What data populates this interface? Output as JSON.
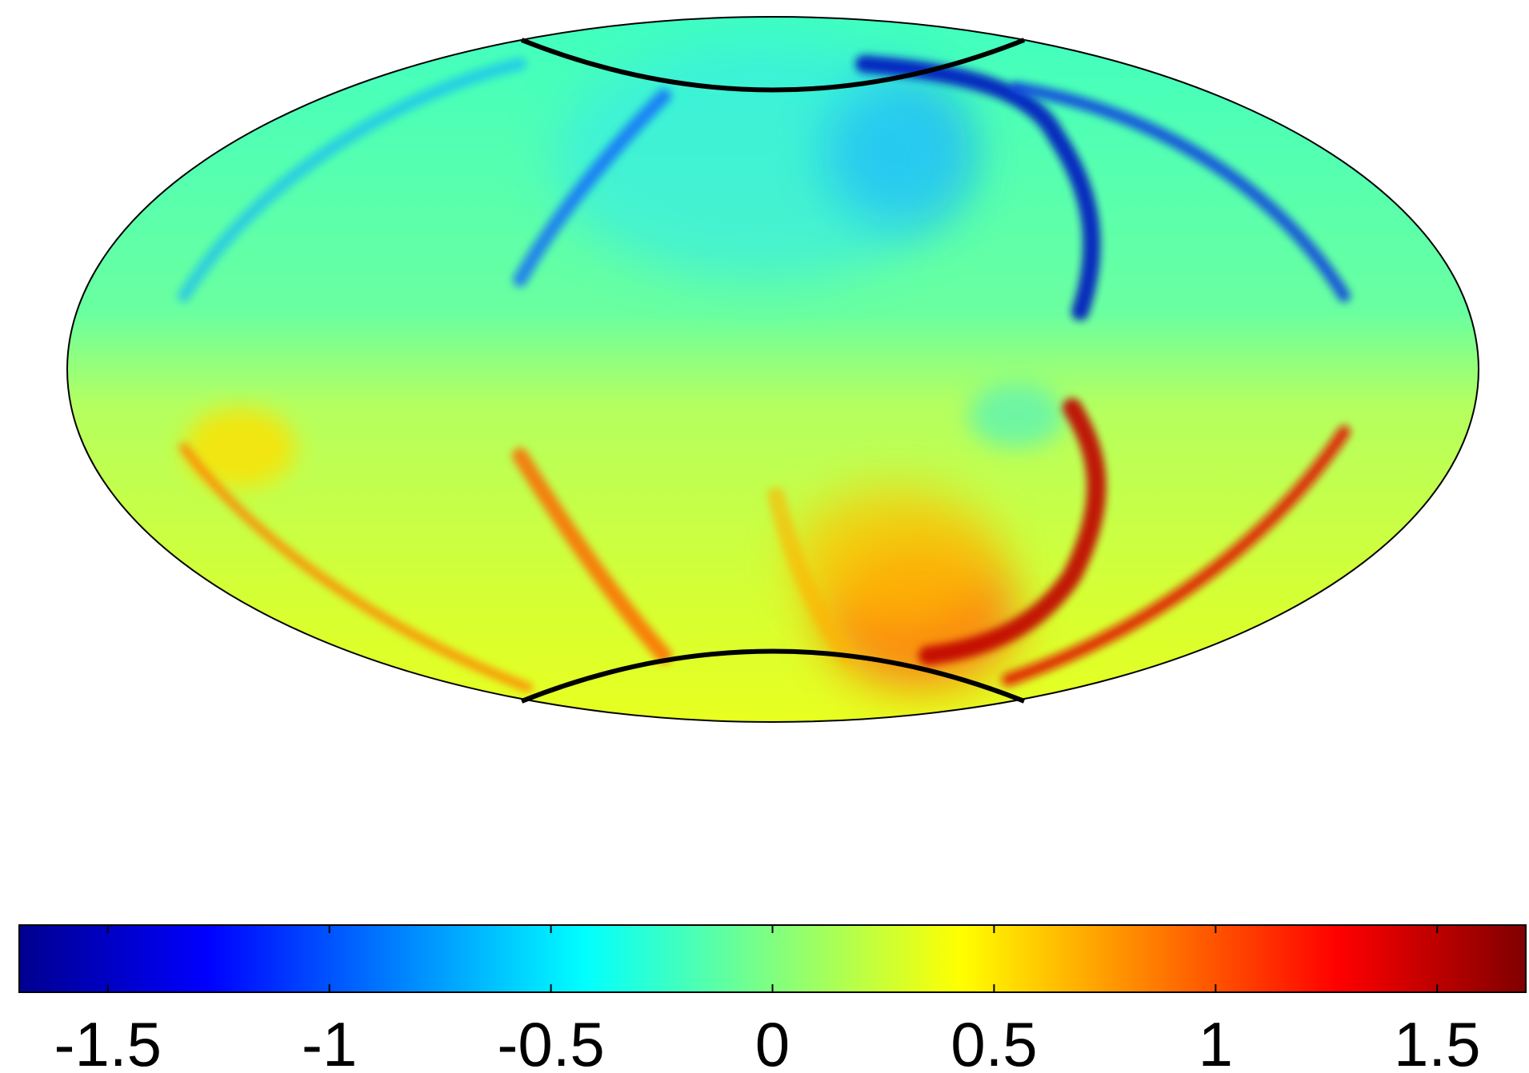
{
  "chart_data": {
    "type": "heatmap",
    "projection": "hammer-aitoff",
    "title": "",
    "xlabel": "",
    "ylabel": "",
    "grid": false,
    "legend": "colorbar-bottom",
    "colormap": "jet",
    "colorbar": {
      "range": [
        -1.7,
        1.7
      ],
      "ticks": [
        -1.5,
        -1,
        -0.5,
        0,
        0.5,
        1,
        1.5
      ],
      "tick_labels": [
        "-1.5",
        "-1",
        "-0.5",
        "0",
        "0.5",
        "1",
        "1.5"
      ],
      "levels": 64
    },
    "overlay": {
      "polar_caps": true,
      "cap_latitude_deg": 63
    },
    "features": [
      {
        "kind": "negative-streak",
        "value": -1.6,
        "region": "north-east"
      },
      {
        "kind": "negative-blob",
        "value": -1.0,
        "region": "north-center"
      },
      {
        "kind": "positive-streak",
        "value": 1.6,
        "region": "south-east"
      },
      {
        "kind": "positive-blob",
        "value": 1.0,
        "region": "south-center"
      }
    ]
  },
  "colors": {
    "jet": [
      "#00008f",
      "#0000ff",
      "#00ffff",
      "#80ff80",
      "#ffff00",
      "#ff0000",
      "#800000"
    ],
    "background": "#78ffa0",
    "outline": "#000000"
  }
}
